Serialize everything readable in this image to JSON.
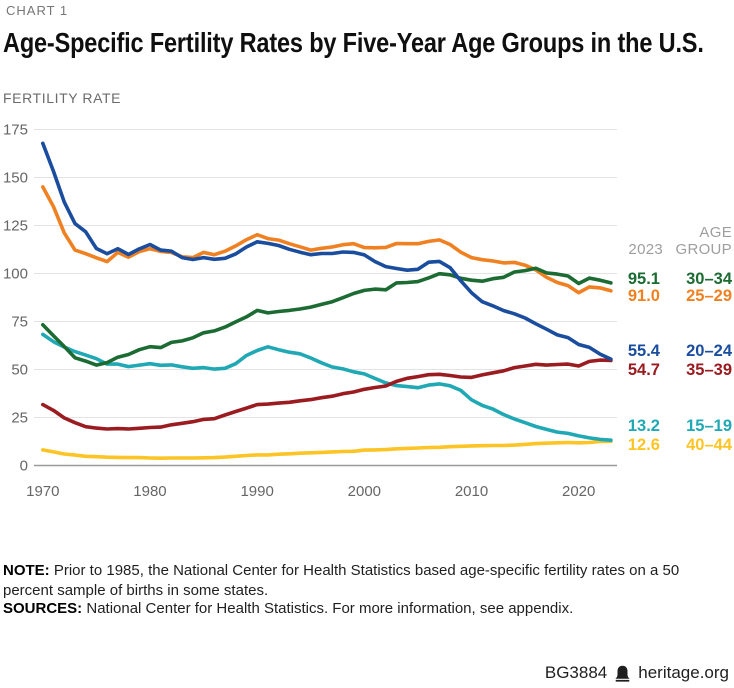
{
  "kicker": "CHART 1",
  "title": "Age-Specific Fertility Rates by Five-Year Age Groups in the U.S.",
  "y_axis_title": "FERTILITY RATE",
  "legend": {
    "value_header": "2023",
    "group_header_line1": "AGE",
    "group_header_line2": "GROUP"
  },
  "note": {
    "label": "NOTE:",
    "text": "Prior to 1985, the National Center for Health Statistics based age-specific fertility rates on a 50 percent sample of births in some states."
  },
  "sources": {
    "label": "SOURCES:",
    "text": "National Center for Health Statistics. For more information, see appendix."
  },
  "footer": {
    "id": "BG3884",
    "site": "heritage.org",
    "logo": "heritage-bell-icon"
  },
  "colors": {
    "gridline": "#e3e3e3",
    "zero_axis": "#9b9b9b",
    "tick_text": "#666666",
    "header_text": "#9e9e9e"
  },
  "chart_data": {
    "type": "line",
    "title": "Age-Specific Fertility Rates by Five-Year Age Groups in the U.S.",
    "xlabel": "",
    "ylabel": "FERTILITY RATE",
    "ylim": [
      0,
      175
    ],
    "yticks": [
      0,
      25,
      50,
      75,
      100,
      125,
      150,
      175
    ],
    "xticks": [
      1970,
      1980,
      1990,
      2000,
      2010,
      2020
    ],
    "grid": "horizontal",
    "legend_position": "right",
    "years": [
      1970,
      1971,
      1972,
      1973,
      1974,
      1975,
      1976,
      1977,
      1978,
      1979,
      1980,
      1981,
      1982,
      1983,
      1984,
      1985,
      1986,
      1987,
      1988,
      1989,
      1990,
      1991,
      1992,
      1993,
      1994,
      1995,
      1996,
      1997,
      1998,
      1999,
      2000,
      2001,
      2002,
      2003,
      2004,
      2005,
      2006,
      2007,
      2008,
      2009,
      2010,
      2011,
      2012,
      2013,
      2014,
      2015,
      2016,
      2017,
      2018,
      2019,
      2020,
      2021,
      2022,
      2023
    ],
    "series": [
      {
        "name": "30–34",
        "label_value": "95.1",
        "color": "#1c6b33",
        "values": [
          73.3,
          67.6,
          62.0,
          56.1,
          54.4,
          52.3,
          53.6,
          56.4,
          57.8,
          60.3,
          61.9,
          61.4,
          64.1,
          64.9,
          66.5,
          69.1,
          70.1,
          72.1,
          74.8,
          77.4,
          80.8,
          79.5,
          80.2,
          80.8,
          81.5,
          82.5,
          83.9,
          85.3,
          87.4,
          89.6,
          91.2,
          91.9,
          91.5,
          95.1,
          95.3,
          95.8,
          97.7,
          99.9,
          99.3,
          97.5,
          96.5,
          96.0,
          97.3,
          98.0,
          100.8,
          101.5,
          102.7,
          100.3,
          99.7,
          98.7,
          94.8,
          97.6,
          96.5,
          95.1
        ]
      },
      {
        "name": "25–29",
        "label_value": "91.0",
        "color": "#ef8122",
        "values": [
          145.1,
          134.8,
          121.2,
          112.2,
          110.3,
          108.2,
          106.2,
          111.0,
          108.5,
          111.4,
          112.9,
          111.5,
          111.0,
          108.7,
          108.3,
          111.0,
          109.8,
          111.6,
          114.4,
          117.6,
          120.2,
          118.2,
          117.4,
          115.5,
          113.9,
          112.2,
          113.1,
          113.8,
          115.0,
          115.5,
          113.5,
          113.4,
          113.6,
          115.6,
          115.5,
          115.5,
          116.7,
          117.5,
          115.1,
          111.1,
          108.3,
          107.2,
          106.5,
          105.5,
          105.8,
          104.3,
          101.9,
          98.0,
          95.3,
          93.7,
          90.0,
          93.0,
          92.5,
          91.0
        ]
      },
      {
        "name": "20–24",
        "label_value": "55.4",
        "color": "#1b4d9e",
        "values": [
          167.8,
          153.2,
          137.3,
          126.0,
          121.7,
          113.0,
          110.3,
          112.9,
          109.9,
          112.8,
          115.1,
          112.2,
          111.6,
          108.3,
          107.3,
          108.3,
          107.4,
          107.9,
          110.2,
          113.8,
          116.5,
          115.7,
          114.6,
          112.6,
          111.1,
          109.8,
          110.4,
          110.4,
          111.2,
          111.0,
          109.7,
          106.2,
          103.6,
          102.6,
          101.7,
          102.2,
          105.9,
          106.3,
          103.0,
          96.2,
          90.0,
          85.3,
          83.1,
          80.7,
          79.0,
          76.8,
          73.8,
          71.0,
          68.0,
          66.6,
          63.0,
          61.5,
          58.0,
          55.4
        ]
      },
      {
        "name": "35–39",
        "label_value": "54.7",
        "color": "#9a1c20",
        "values": [
          31.7,
          28.7,
          24.8,
          22.3,
          20.2,
          19.5,
          19.0,
          19.2,
          19.0,
          19.4,
          19.8,
          20.0,
          21.2,
          22.0,
          22.8,
          24.0,
          24.4,
          26.3,
          28.1,
          29.9,
          31.7,
          32.0,
          32.5,
          32.9,
          33.7,
          34.3,
          35.3,
          36.1,
          37.4,
          38.3,
          39.7,
          40.6,
          41.4,
          43.8,
          45.4,
          46.3,
          47.3,
          47.5,
          46.9,
          46.1,
          45.9,
          47.2,
          48.3,
          49.3,
          51.0,
          51.8,
          52.7,
          52.3,
          52.6,
          52.8,
          51.8,
          54.2,
          54.9,
          54.7
        ]
      },
      {
        "name": "15–19",
        "label_value": "13.2",
        "color": "#21a8b5",
        "values": [
          68.3,
          64.5,
          61.7,
          59.3,
          57.5,
          55.6,
          52.8,
          52.8,
          51.5,
          52.3,
          53.0,
          52.2,
          52.4,
          51.4,
          50.6,
          51.0,
          50.2,
          50.6,
          53.0,
          57.3,
          59.9,
          61.8,
          60.3,
          59.0,
          58.2,
          56.0,
          53.5,
          51.3,
          50.3,
          48.8,
          47.7,
          45.3,
          43.0,
          41.6,
          41.1,
          40.5,
          41.9,
          42.5,
          41.5,
          39.1,
          34.2,
          31.3,
          29.4,
          26.5,
          24.2,
          22.3,
          20.3,
          18.8,
          17.4,
          16.7,
          15.4,
          14.4,
          13.6,
          13.2
        ]
      },
      {
        "name": "40–44",
        "label_value": "12.6",
        "color": "#fcc425",
        "values": [
          8.1,
          7.1,
          6.0,
          5.4,
          4.8,
          4.6,
          4.3,
          4.2,
          4.1,
          4.1,
          3.9,
          3.8,
          3.9,
          3.9,
          3.9,
          4.0,
          4.1,
          4.4,
          4.8,
          5.2,
          5.5,
          5.5,
          5.9,
          6.1,
          6.4,
          6.6,
          6.8,
          7.1,
          7.3,
          7.4,
          8.0,
          8.1,
          8.3,
          8.7,
          8.9,
          9.1,
          9.4,
          9.5,
          9.8,
          10.0,
          10.2,
          10.3,
          10.4,
          10.4,
          10.6,
          11.0,
          11.4,
          11.6,
          11.8,
          12.0,
          11.8,
          12.0,
          12.5,
          12.6
        ]
      }
    ]
  }
}
